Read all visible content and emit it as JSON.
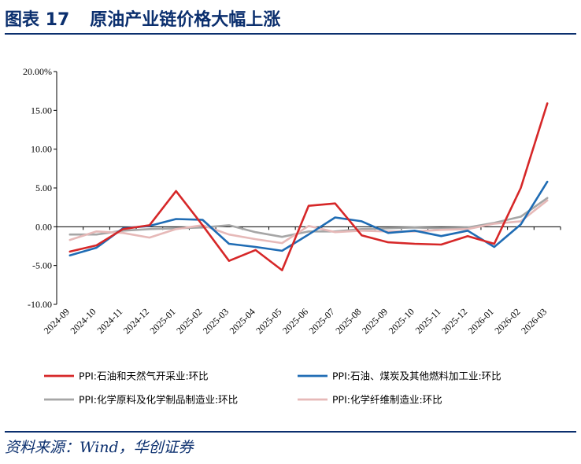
{
  "figure": {
    "number": "图表 17",
    "caption": "原油产业链价格大幅上涨",
    "source": "资料来源：Wind，华创证券"
  },
  "chart_data": {
    "type": "line",
    "title": "",
    "xlabel": "",
    "ylabel": "",
    "ylim": [
      -10,
      20
    ],
    "yticks": [
      "20.00%",
      "15.00",
      "10.00",
      "5.00",
      "0.00",
      "-5.00",
      "-10.00"
    ],
    "ytick_values": [
      20,
      15,
      10,
      5,
      0,
      -5,
      -10
    ],
    "grid": false,
    "legend_position": "bottom",
    "categories": [
      "2024-09",
      "2024-10",
      "2024-11",
      "2024-12",
      "2025-01",
      "2025-02",
      "2025-03",
      "2025-04",
      "2025-05",
      "2025-06",
      "2025-07",
      "2025-08",
      "2025-09",
      "2025-10",
      "2025-11",
      "2025-12",
      "2026-01",
      "2026-02",
      "2026-03"
    ],
    "series": [
      {
        "name": "PPI:石油和天然气开采业:环比",
        "color": "#d62728",
        "values": [
          -3.2,
          -2.4,
          -0.3,
          0.2,
          4.6,
          0.2,
          -4.4,
          -3.0,
          -5.6,
          2.7,
          3.0,
          -1.1,
          -2.0,
          -2.2,
          -2.3,
          -1.2,
          -2.2,
          5.0,
          15.9
        ]
      },
      {
        "name": "PPI:石油、煤炭及其他燃料加工业:环比",
        "color": "#1f6cb4",
        "values": [
          -3.7,
          -2.7,
          -0.2,
          0.1,
          1.0,
          0.9,
          -2.2,
          -2.6,
          -3.1,
          -1.0,
          1.2,
          0.7,
          -0.8,
          -0.5,
          -1.2,
          -0.5,
          -2.6,
          0.3,
          5.8
        ]
      },
      {
        "name": "PPI:化学原料及化学制品制造业:环比",
        "color": "#a6a6a6",
        "values": [
          -1.0,
          -1.0,
          -0.5,
          -0.3,
          -0.2,
          -0.1,
          0.2,
          -0.7,
          -1.3,
          -0.6,
          -0.6,
          -0.3,
          -0.2,
          -0.1,
          -0.2,
          -0.1,
          0.5,
          1.3,
          3.7
        ]
      },
      {
        "name": "PPI:化学纤维制造业:环比",
        "color": "#e6b9b8",
        "values": [
          -1.7,
          -0.6,
          -0.8,
          -1.4,
          -0.3,
          0.2,
          -1.0,
          -1.6,
          -2.1,
          0.1,
          -0.7,
          -0.5,
          -0.6,
          -0.6,
          -0.4,
          -0.3,
          0.4,
          0.7,
          3.4
        ]
      }
    ]
  }
}
